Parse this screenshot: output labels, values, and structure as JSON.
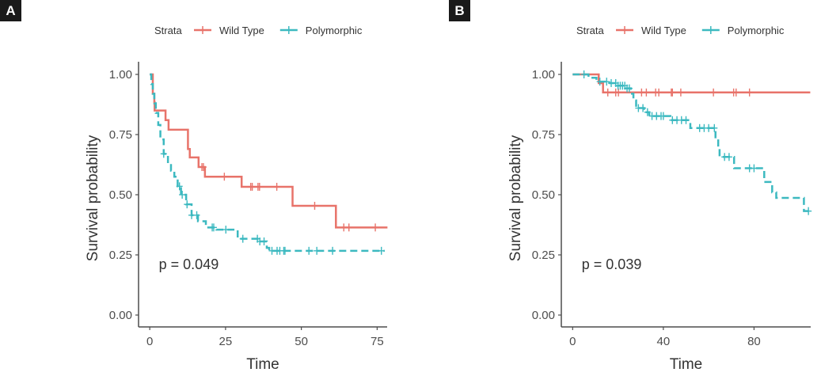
{
  "colors": {
    "wild_type": "#E8736A",
    "polymorphic": "#3CB9C0",
    "axis": "#4d4d4d"
  },
  "chart_data": [
    {
      "panel": "A",
      "type": "line",
      "subtype": "kaplan-meier",
      "legend": {
        "title": "Strata",
        "entries": [
          "Wild Type",
          "Polymorphic"
        ],
        "placement": "top"
      },
      "xlabel": "Time",
      "ylabel": "Survival probability",
      "xlim": [
        -3.7,
        78.3
      ],
      "ylim": [
        -0.05,
        1.05
      ],
      "xticks": [
        "0",
        "25",
        "50",
        "75"
      ],
      "xtick_values": [
        0,
        25,
        50,
        75
      ],
      "yticks": [
        "0.00",
        "0.25",
        "0.50",
        "0.75",
        "1.00"
      ],
      "ytick_values": [
        0,
        0.25,
        0.5,
        0.75,
        1
      ],
      "annotation": "p = 0.049",
      "annotation_pos": [
        3,
        0.19
      ],
      "grid": false,
      "series": [
        {
          "name": "Wild Type",
          "dashed": false,
          "steps": [
            [
              0,
              1.0
            ],
            [
              1,
              0.92
            ],
            [
              1.5,
              0.885
            ],
            [
              1.6,
              0.85
            ],
            [
              5.2,
              0.81
            ],
            [
              6.2,
              0.77
            ],
            [
              12.6,
              0.69
            ],
            [
              13.2,
              0.655
            ],
            [
              16.1,
              0.615
            ],
            [
              18.2,
              0.575
            ],
            [
              30.3,
              0.533
            ],
            [
              47.1,
              0.454
            ],
            [
              61.4,
              0.364
            ]
          ],
          "end": 78.4,
          "censored": [
            17.2,
            17.7,
            24.6,
            33.3,
            33.8,
            35.7,
            36.2,
            41.9,
            54.4,
            64,
            65.7,
            74.4
          ]
        },
        {
          "name": "Polymorphic",
          "dashed": true,
          "steps": [
            [
              0,
              1.0
            ],
            [
              0.5,
              0.96
            ],
            [
              1,
              0.92
            ],
            [
              1.5,
              0.88
            ],
            [
              2,
              0.84
            ],
            [
              2.8,
              0.79
            ],
            [
              3.5,
              0.73
            ],
            [
              4.6,
              0.67
            ],
            [
              6,
              0.63
            ],
            [
              7,
              0.6
            ],
            [
              8.1,
              0.575
            ],
            [
              9.2,
              0.535
            ],
            [
              10.3,
              0.5
            ],
            [
              12,
              0.46
            ],
            [
              13.8,
              0.415
            ],
            [
              15.9,
              0.39
            ],
            [
              18.5,
              0.364
            ],
            [
              22,
              0.355
            ],
            [
              29,
              0.317
            ],
            [
              36,
              0.306
            ],
            [
              38.6,
              0.279
            ],
            [
              39.4,
              0.267
            ]
          ],
          "end": 77.5,
          "censored": [
            4.6,
            9.8,
            10.7,
            12.3,
            13.8,
            15.5,
            20.6,
            21.1,
            25.1,
            30.7,
            35.5,
            36.3,
            37.7,
            40.3,
            42,
            42.9,
            44.2,
            44.6,
            52.5,
            55.1,
            60.3,
            76.4
          ]
        }
      ]
    },
    {
      "panel": "B",
      "type": "line",
      "subtype": "kaplan-meier",
      "legend": {
        "title": "Strata",
        "entries": [
          "Wild Type",
          "Polymorphic"
        ],
        "placement": "top"
      },
      "xlabel": "Time",
      "ylabel": "Survival probability",
      "xlim": [
        -5,
        105
      ],
      "ylim": [
        -0.05,
        1.05
      ],
      "xticks": [
        "0",
        "40",
        "80"
      ],
      "xtick_values": [
        0,
        40,
        80
      ],
      "yticks": [
        "0.00",
        "0.25",
        "0.50",
        "0.75",
        "1.00"
      ],
      "ytick_values": [
        0,
        0.25,
        0.5,
        0.75,
        1
      ],
      "annotation": "p = 0.039",
      "annotation_pos": [
        4,
        0.19
      ],
      "grid": false,
      "series": [
        {
          "name": "Wild Type",
          "dashed": false,
          "steps": [
            [
              0,
              1.0
            ],
            [
              11.5,
              0.964
            ],
            [
              13.4,
              0.925
            ]
          ],
          "end": 104.8,
          "censored": [
            15.5,
            19,
            20.2,
            30.4,
            32.5,
            36.6,
            38,
            43.5,
            44,
            47.7,
            62.1,
            71,
            72.1,
            78
          ]
        },
        {
          "name": "Polymorphic",
          "dashed": true,
          "steps": [
            [
              0,
              1.0
            ],
            [
              7,
              0.986
            ],
            [
              10.5,
              0.97
            ],
            [
              16.3,
              0.964
            ],
            [
              19.8,
              0.953
            ],
            [
              23.3,
              0.942
            ],
            [
              25.7,
              0.92
            ],
            [
              26.8,
              0.892
            ],
            [
              28,
              0.86
            ],
            [
              31.5,
              0.843
            ],
            [
              33.8,
              0.827
            ],
            [
              43.1,
              0.81
            ],
            [
              51.9,
              0.777
            ],
            [
              63,
              0.733
            ],
            [
              64.2,
              0.695
            ],
            [
              64.8,
              0.657
            ],
            [
              71.2,
              0.61
            ],
            [
              84.5,
              0.553
            ],
            [
              88,
              0.51
            ],
            [
              89.8,
              0.487
            ],
            [
              102,
              0.432
            ]
          ],
          "end": 104.9,
          "censored": [
            5,
            12,
            15,
            17,
            19,
            20,
            21,
            22,
            23,
            24,
            25,
            29,
            31,
            33,
            35,
            37,
            39,
            40,
            44,
            46,
            48,
            50,
            56,
            58,
            60,
            62.5,
            67,
            69,
            78,
            80,
            104
          ]
        }
      ]
    }
  ]
}
